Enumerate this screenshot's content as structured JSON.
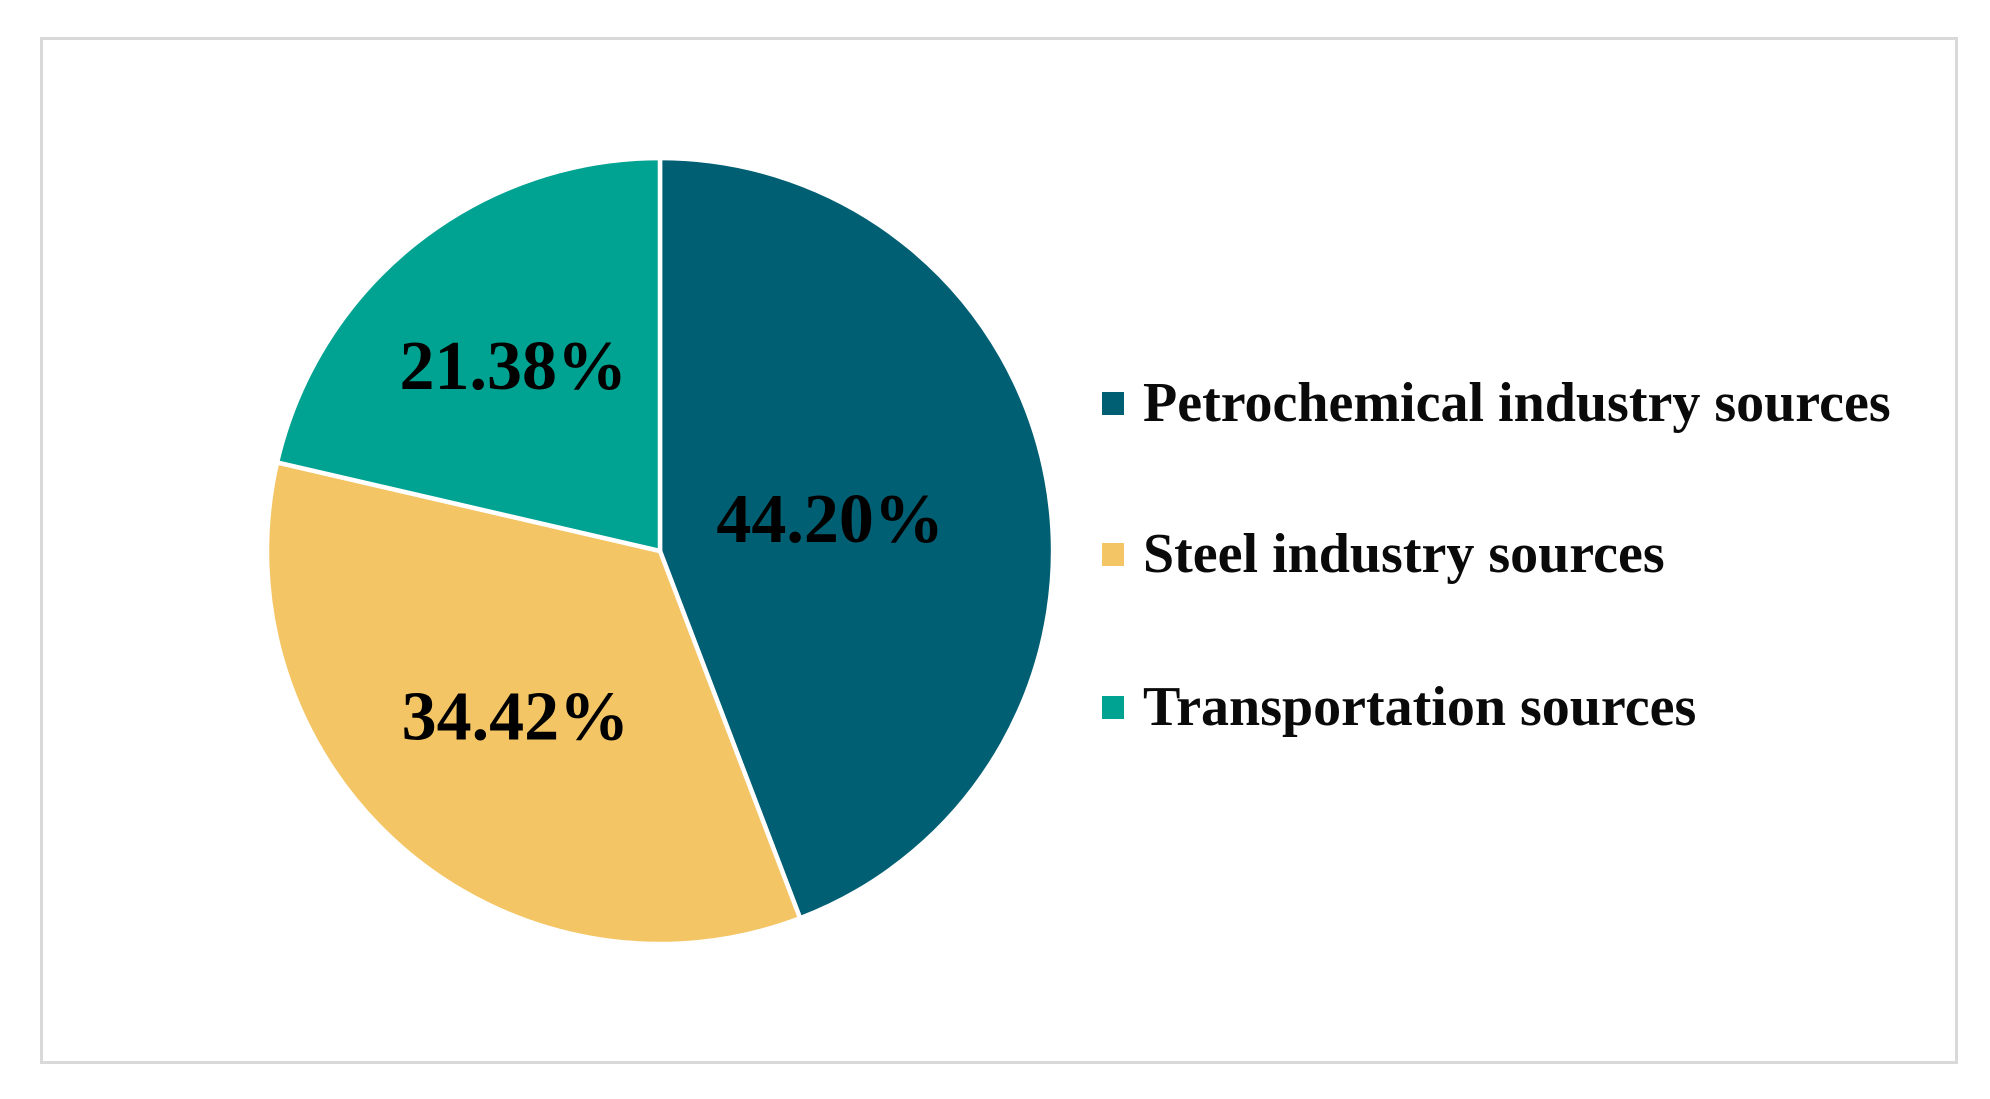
{
  "figure": {
    "background": "#ffffff",
    "frame_border_color": "#d9d9d9"
  },
  "chart_data": {
    "type": "pie",
    "title": "",
    "start_angle": "12 o'clock, clockwise",
    "legend_position": "right",
    "slice_border_color": "#ffffff",
    "data_label_color": "#000000",
    "slices": [
      {
        "label": "Petrochemical industry sources",
        "value": 44.2,
        "data_label": "44.20%",
        "color": "#005f73"
      },
      {
        "label": "Steel industry sources",
        "value": 34.42,
        "data_label": "34.42%",
        "color": "#f4c565"
      },
      {
        "label": "Transportation sources",
        "value": 21.38,
        "data_label": "21.38%",
        "color": "#00a292"
      }
    ]
  }
}
